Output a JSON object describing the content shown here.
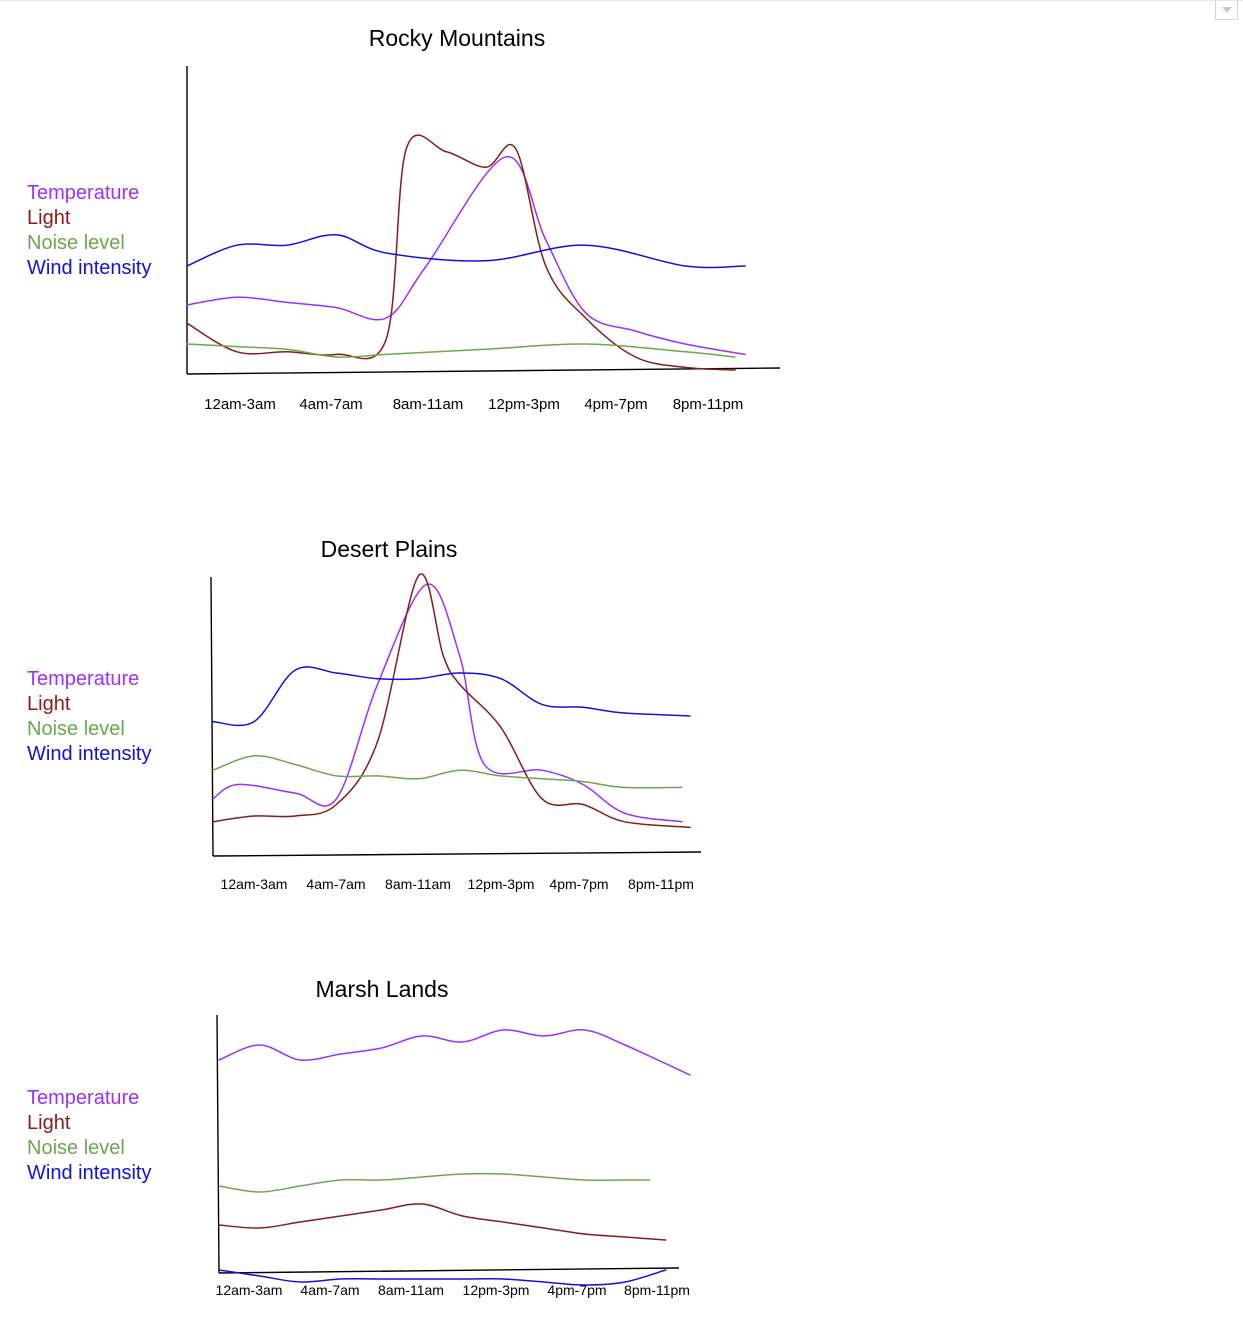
{
  "colors": {
    "temperature": "#9b30ff",
    "light": "#8b1a1a",
    "noise": "#6aa84f",
    "wind": "#1010e0"
  },
  "icons": {
    "corner": "chevron-down-icon"
  },
  "chart_data": [
    {
      "type": "line",
      "title": "Rocky Mountains",
      "categories": [
        "12am-3am",
        "4am-7am",
        "8am-11am",
        "12pm-3pm",
        "4pm-7pm",
        "8pm-11pm"
      ],
      "legend": [
        "Temperature",
        "Light",
        "Noise level",
        "Wind intensity"
      ],
      "legend_position": "left",
      "grid": false,
      "ylim": [
        0,
        100
      ],
      "series": [
        {
          "name": "Temperature",
          "color": "#9b30ff",
          "x": [
            0,
            0.5,
            1,
            1.5,
            2,
            2.4,
            3.2,
            3.6,
            4,
            4.5,
            5,
            5.6
          ],
          "values": [
            25,
            28,
            26,
            24,
            20,
            40,
            82,
            50,
            22,
            15,
            10,
            6
          ]
        },
        {
          "name": "Light",
          "color": "#8b1a1a",
          "x": [
            0,
            0.5,
            1,
            1.5,
            2,
            2.2,
            2.6,
            3.0,
            3.3,
            3.6,
            4,
            4.5,
            5,
            5.5
          ],
          "values": [
            18,
            7,
            7,
            6,
            12,
            85,
            84,
            78,
            85,
            40,
            20,
            5,
            1,
            0
          ]
        },
        {
          "name": "Noise level",
          "color": "#6aa84f",
          "x": [
            0,
            0.5,
            1,
            1.5,
            2,
            3,
            4,
            5,
            5.5
          ],
          "values": [
            10,
            9,
            8,
            5,
            6,
            8,
            10,
            7,
            5
          ]
        },
        {
          "name": "Wind intensity",
          "color": "#1010e0",
          "x": [
            0,
            0.5,
            1,
            1.5,
            2,
            3,
            4,
            5,
            5.6
          ],
          "values": [
            40,
            48,
            48,
            52,
            45,
            42,
            48,
            40,
            40
          ]
        }
      ]
    },
    {
      "type": "line",
      "title": "Desert Plains",
      "categories": [
        "12am-3am",
        "4am-7am",
        "8am-11am",
        "12pm-3pm",
        "4pm-7pm",
        "8pm-11pm"
      ],
      "legend": [
        "Temperature",
        "Light",
        "Noise level",
        "Wind intensity"
      ],
      "legend_position": "left",
      "grid": false,
      "ylim": [
        0,
        100
      ],
      "series": [
        {
          "name": "Temperature",
          "color": "#9b30ff",
          "x": [
            0,
            0.3,
            1,
            1.5,
            2,
            2.6,
            3.0,
            3.3,
            4,
            4.5,
            5,
            5.7
          ],
          "values": [
            20,
            25,
            22,
            20,
            60,
            95,
            70,
            32,
            30,
            25,
            15,
            12
          ]
        },
        {
          "name": "Light",
          "color": "#8b1a1a",
          "x": [
            0,
            0.5,
            1,
            1.5,
            2,
            2.5,
            2.8,
            3.0,
            3.5,
            4,
            4.5,
            5,
            5.8
          ],
          "values": [
            12,
            14,
            14,
            18,
            40,
            98,
            70,
            60,
            45,
            20,
            18,
            12,
            10
          ]
        },
        {
          "name": "Noise level",
          "color": "#6aa84f",
          "x": [
            0,
            0.5,
            1,
            1.5,
            2,
            2.5,
            3,
            3.5,
            4,
            4.5,
            5,
            5.7
          ],
          "values": [
            30,
            35,
            32,
            28,
            28,
            27,
            30,
            28,
            27,
            26,
            24,
            24
          ]
        },
        {
          "name": "Wind intensity",
          "color": "#1010e0",
          "x": [
            0,
            0.5,
            1,
            1.5,
            2,
            2.5,
            3,
            3.5,
            4,
            4.5,
            5,
            5.8
          ],
          "values": [
            47,
            47,
            65,
            64,
            62,
            62,
            64,
            62,
            53,
            52,
            50,
            49
          ]
        }
      ]
    },
    {
      "type": "line",
      "title": "Marsh Lands",
      "categories": [
        "12am-3am",
        "4am-7am",
        "8am-11am",
        "12pm-3pm",
        "4pm-7pm",
        "8pm-11pm"
      ],
      "legend": [
        "Temperature",
        "Light",
        "Noise level",
        "Wind intensity"
      ],
      "legend_position": "left",
      "grid": false,
      "ylim": [
        0,
        100
      ],
      "series": [
        {
          "name": "Temperature",
          "color": "#9b30ff",
          "x": [
            0,
            0.5,
            1,
            1.5,
            2,
            2.5,
            3,
            3.5,
            4,
            4.5,
            5,
            5.8
          ],
          "values": [
            80,
            85,
            80,
            82,
            84,
            88,
            86,
            90,
            88,
            90,
            85,
            75
          ]
        },
        {
          "name": "Light",
          "color": "#8b1a1a",
          "x": [
            0,
            0.5,
            1,
            1.5,
            2,
            2.5,
            3,
            3.5,
            4,
            4.5,
            5,
            5.5
          ],
          "values": [
            25,
            24,
            26,
            28,
            30,
            32,
            28,
            26,
            24,
            22,
            21,
            20
          ]
        },
        {
          "name": "Noise level",
          "color": "#6aa84f",
          "x": [
            0,
            0.5,
            1,
            1.5,
            2,
            2.5,
            3,
            3.5,
            4,
            4.5,
            5,
            5.3
          ],
          "values": [
            38,
            36,
            38,
            40,
            40,
            41,
            42,
            42,
            41,
            40,
            40,
            40
          ]
        },
        {
          "name": "Wind intensity",
          "color": "#1010e0",
          "x": [
            0,
            0.5,
            1,
            1.5,
            2,
            2.5,
            3,
            3.5,
            4,
            4.5,
            5,
            5.5
          ],
          "values": [
            10,
            8,
            6,
            7,
            7,
            7,
            7,
            7,
            6,
            5,
            6,
            10
          ]
        }
      ]
    }
  ]
}
